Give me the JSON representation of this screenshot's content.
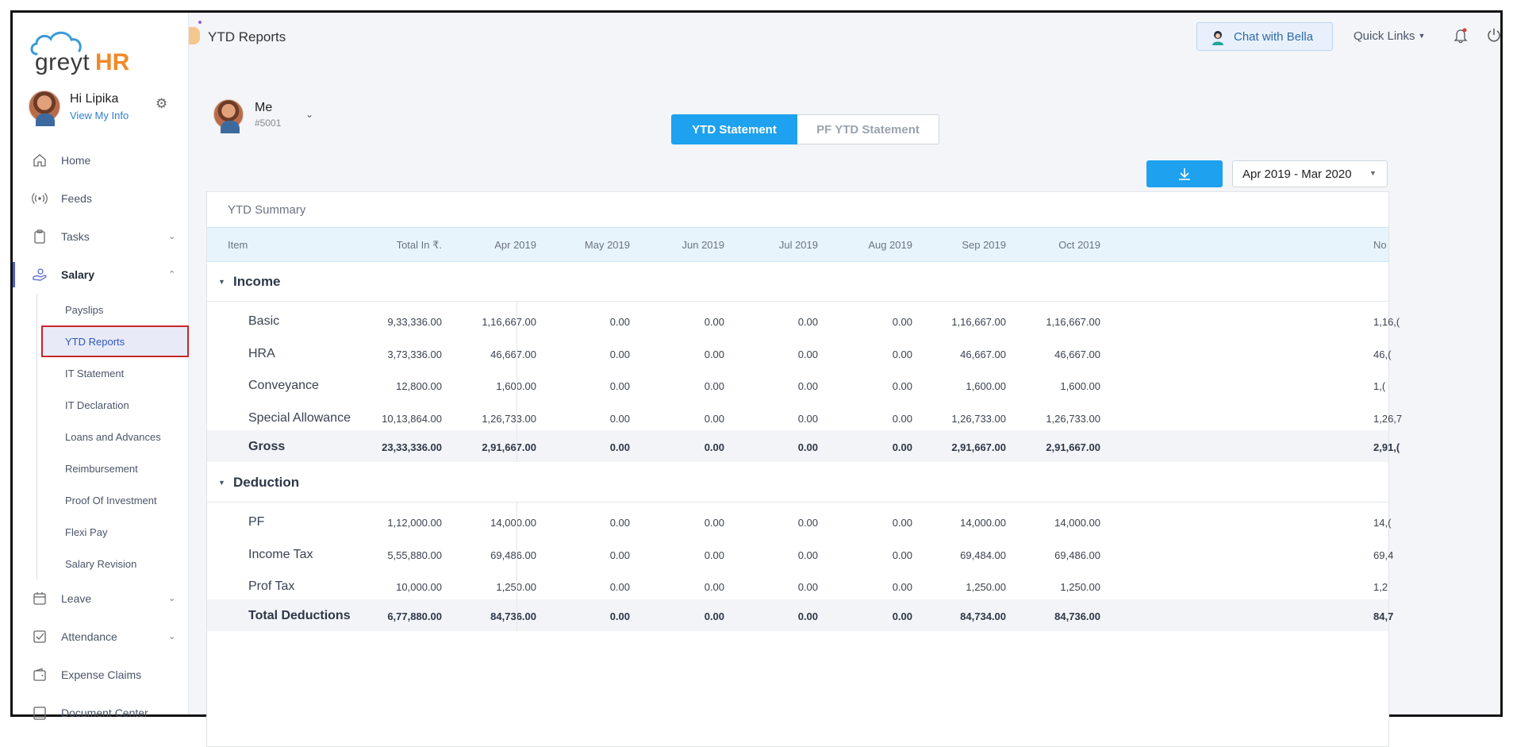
{
  "brand": {
    "logo_text_left": "greyt",
    "logo_text_right": "HR"
  },
  "profile": {
    "greeting": "Hi Lipika",
    "link": "View My Info"
  },
  "nav": {
    "home": "Home",
    "feeds": "Feeds",
    "tasks": "Tasks",
    "salary": "Salary",
    "salary_sub": [
      "Payslips",
      "YTD Reports",
      "IT Statement",
      "IT Declaration",
      "Loans and Advances",
      "Reimbursement",
      "Proof Of Investment",
      "Flexi Pay",
      "Salary Revision"
    ],
    "leave": "Leave",
    "attendance": "Attendance",
    "expense_claims": "Expense Claims",
    "document_center": "Document Center"
  },
  "header": {
    "page_title": "YTD Reports",
    "chat_label": "Chat with Bella",
    "quick_links": "Quick Links"
  },
  "employee": {
    "name": "Me",
    "id": "#5001"
  },
  "tabs": {
    "active": "YTD Statement",
    "inactive": "PF YTD Statement"
  },
  "period": {
    "selected": "Apr 2019 - Mar 2020"
  },
  "table": {
    "title": "YTD Summary",
    "columns": [
      "Item",
      "Total In ₹.",
      "Apr 2019",
      "May 2019",
      "Jun 2019",
      "Jul 2019",
      "Aug 2019",
      "Sep 2019",
      "Oct 2019",
      "No"
    ],
    "income_label": "Income",
    "income_rows": [
      {
        "label": "Basic",
        "values": [
          "9,33,336.00",
          "1,16,667.00",
          "0.00",
          "0.00",
          "0.00",
          "0.00",
          "1,16,667.00",
          "1,16,667.00",
          "1,16,("
        ]
      },
      {
        "label": "HRA",
        "values": [
          "3,73,336.00",
          "46,667.00",
          "0.00",
          "0.00",
          "0.00",
          "0.00",
          "46,667.00",
          "46,667.00",
          "46,("
        ]
      },
      {
        "label": "Conveyance",
        "values": [
          "12,800.00",
          "1,600.00",
          "0.00",
          "0.00",
          "0.00",
          "0.00",
          "1,600.00",
          "1,600.00",
          "1,("
        ]
      },
      {
        "label": "Special Allowance",
        "values": [
          "10,13,864.00",
          "1,26,733.00",
          "0.00",
          "0.00",
          "0.00",
          "0.00",
          "1,26,733.00",
          "1,26,733.00",
          "1,26,7"
        ]
      },
      {
        "label": "Gross",
        "total": true,
        "values": [
          "23,33,336.00",
          "2,91,667.00",
          "0.00",
          "0.00",
          "0.00",
          "0.00",
          "2,91,667.00",
          "2,91,667.00",
          "2,91,("
        ]
      }
    ],
    "deduction_label": "Deduction",
    "deduction_rows": [
      {
        "label": "PF",
        "values": [
          "1,12,000.00",
          "14,000.00",
          "0.00",
          "0.00",
          "0.00",
          "0.00",
          "14,000.00",
          "14,000.00",
          "14,("
        ]
      },
      {
        "label": "Income Tax",
        "values": [
          "5,55,880.00",
          "69,486.00",
          "0.00",
          "0.00",
          "0.00",
          "0.00",
          "69,484.00",
          "69,486.00",
          "69,4"
        ]
      },
      {
        "label": "Prof Tax",
        "values": [
          "10,000.00",
          "1,250.00",
          "0.00",
          "0.00",
          "0.00",
          "0.00",
          "1,250.00",
          "1,250.00",
          "1,2"
        ]
      },
      {
        "label": "Total Deductions",
        "total": true,
        "values": [
          "6,77,880.00",
          "84,736.00",
          "0.00",
          "0.00",
          "0.00",
          "0.00",
          "84,734.00",
          "84,736.00",
          "84,7"
        ]
      }
    ]
  },
  "colors": {
    "accent": "#1ea1ee",
    "highlight_border": "#c8262c",
    "header_row": "#e8f4fc"
  }
}
